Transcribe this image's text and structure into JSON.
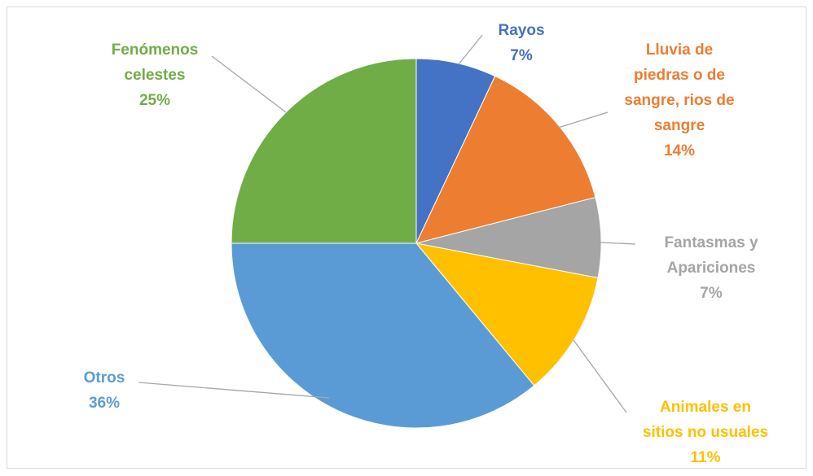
{
  "chart_data": {
    "type": "pie",
    "title": "",
    "start_angle_deg": 0,
    "direction": "clockwise",
    "slices": [
      {
        "label_lines": [
          "Rayos"
        ],
        "percent_label": "7%",
        "value": 7,
        "color": "#4472C4"
      },
      {
        "label_lines": [
          "Lluvia de",
          "piedras o de",
          "sangre, rios de",
          "sangre"
        ],
        "percent_label": "14%",
        "value": 14,
        "color": "#ED7D31"
      },
      {
        "label_lines": [
          "Fantasmas y",
          "Apariciones"
        ],
        "percent_label": "7%",
        "value": 7,
        "color": "#A5A5A5"
      },
      {
        "label_lines": [
          "Animales en",
          "sitios no usuales"
        ],
        "percent_label": "11%",
        "value": 11,
        "color": "#FFC000"
      },
      {
        "label_lines": [
          "Otros"
        ],
        "percent_label": "36%",
        "value": 36,
        "color": "#5B9BD5"
      },
      {
        "label_lines": [
          "Fenómenos",
          "celestes"
        ],
        "percent_label": "25%",
        "value": 25,
        "color": "#70AD47"
      }
    ],
    "leader_line_color": "#A6A6A6",
    "legend": "none"
  }
}
